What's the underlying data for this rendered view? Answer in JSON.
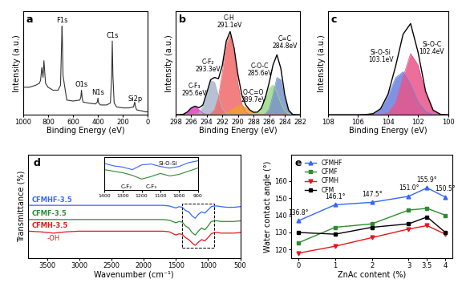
{
  "chart_data": [
    {
      "type": "line",
      "title": "a",
      "x_label": "Binding Energy (eV)",
      "y_label": "Intensity (a.u.)",
      "xlim": [
        1000,
        0
      ],
      "xticks": [
        1000,
        800,
        600,
        400,
        200,
        0
      ],
      "ylim": [
        0,
        105
      ],
      "tick_labels": "x",
      "color": "#333333",
      "x": [
        0,
        20,
        50,
        90,
        100,
        105,
        115,
        150,
        200,
        250,
        270,
        280,
        285,
        290,
        300,
        330,
        380,
        395,
        400,
        405,
        420,
        480,
        520,
        527,
        532,
        537,
        545,
        600,
        650,
        680,
        685,
        688,
        692,
        700,
        720,
        760,
        800,
        820,
        833,
        840,
        850,
        860,
        870,
        900,
        950,
        1000
      ],
      "values": [
        3,
        3,
        4,
        5,
        9,
        13,
        8,
        7,
        7,
        8,
        12,
        40,
        75,
        40,
        12,
        10,
        10,
        12,
        17,
        13,
        11,
        12,
        13,
        18,
        25,
        18,
        15,
        14,
        15,
        40,
        75,
        90,
        70,
        30,
        25,
        25,
        28,
        32,
        55,
        38,
        48,
        35,
        32,
        30,
        28,
        28
      ],
      "annotations": [
        {
          "text": "F1s",
          "x": 688
        },
        {
          "text": "O1s",
          "x": 532
        },
        {
          "text": "N1s",
          "x": 400
        },
        {
          "text": "C1s",
          "x": 285
        },
        {
          "text": "Si2p",
          "x": 102
        }
      ]
    },
    {
      "type": "line",
      "title": "b",
      "x_label": "Binding Energy (eV)",
      "y_label": "Intensity (a.u.)",
      "xlim": [
        298,
        282
      ],
      "xticks": [
        298,
        296,
        294,
        292,
        290,
        288,
        286,
        284,
        282
      ],
      "ylim": [
        0,
        110
      ],
      "tick_labels": "x",
      "x": [
        282.0,
        282.5,
        283.0,
        283.5,
        284.0,
        284.5,
        285.0,
        285.5,
        286.0,
        286.5,
        287.0,
        287.5,
        288.0,
        288.5,
        289.0,
        289.5,
        290.0,
        290.5,
        291.0,
        291.5,
        292.0,
        292.5,
        293.0,
        293.5,
        294.0,
        294.5,
        295.0,
        295.5,
        296.0,
        296.5,
        297.0,
        297.5,
        298.0
      ],
      "series": [
        {
          "name": "C-F₃",
          "label": "295.6eV",
          "type": "area",
          "color": "#e040c0",
          "values": [
            0,
            0,
            0,
            0,
            0,
            0,
            0,
            0,
            0,
            0,
            0,
            0,
            0,
            0,
            0,
            0,
            0,
            0,
            0,
            0,
            0,
            0,
            0,
            0,
            0.3,
            1.7,
            5.5,
            8.9,
            7.2,
            2.9,
            0.6,
            0,
            0
          ]
        },
        {
          "name": "C-F₂",
          "label": "293.3eV",
          "type": "area",
          "color": "#a9b8cc",
          "values": [
            0,
            0,
            0,
            0,
            0,
            0,
            0,
            0,
            0,
            0,
            0,
            0,
            0,
            0,
            0,
            0,
            0,
            0,
            0,
            1.4,
            6.8,
            19.8,
            34.7,
            36.5,
            23.0,
            8.7,
            2.0,
            0.3,
            0,
            0,
            0,
            0,
            0
          ]
        },
        {
          "name": "C-H",
          "label": "291.1eV",
          "type": "area",
          "color": "#f06a6a",
          "values": [
            0,
            0,
            0,
            0,
            0,
            0,
            0,
            0,
            0,
            0,
            0,
            0,
            0,
            0.4,
            2.7,
            11.5,
            33.1,
            64.2,
            84.3,
            75.0,
            45.1,
            18.4,
            5.1,
            0.9,
            0,
            0,
            0,
            0,
            0,
            0,
            0,
            0,
            0
          ]
        },
        {
          "name": "O-C=O",
          "label": "289.7eV",
          "type": "area",
          "color": "#f0a030",
          "values": [
            0,
            0,
            0,
            0,
            0,
            0,
            0,
            0,
            0,
            0,
            0,
            0.9,
            2.4,
            4.9,
            7.8,
            9.8,
            9.6,
            7.3,
            4.3,
            2.0,
            0.7,
            0.2,
            0,
            0,
            0,
            0,
            0,
            0,
            0,
            0,
            0,
            0,
            0
          ]
        },
        {
          "name": "C-O-C",
          "label": "285.6eV",
          "type": "area",
          "color": "#9ad98a",
          "values": [
            0,
            0,
            0,
            1.0,
            4.3,
            12.4,
            24.2,
            31.7,
            28.2,
            17.0,
            6.9,
            1.9,
            0.3,
            0,
            0,
            0,
            0,
            0,
            0,
            0,
            0,
            0,
            0,
            0,
            0,
            0,
            0,
            0,
            0,
            0,
            0,
            0,
            0
          ]
        },
        {
          "name": "C=C",
          "label": "284.8eV",
          "type": "area",
          "color": "#7b93c9",
          "values": [
            0,
            0,
            0.5,
            4.0,
            17.3,
            37.1,
            39.7,
            21.3,
            5.7,
            0.8,
            0,
            0,
            0,
            0,
            0,
            0,
            0,
            0,
            0,
            0,
            0,
            0,
            0,
            0,
            0,
            0,
            0,
            0,
            0,
            0,
            0,
            0,
            0
          ]
        },
        {
          "type": "line",
          "color": "#000000",
          "values": [
            0,
            0,
            0.5,
            5.0,
            21.6,
            49.5,
            63.9,
            53.0,
            33.9,
            17.8,
            6.9,
            2.8,
            2.7,
            5.3,
            10.5,
            21.3,
            42.7,
            71.5,
            88.6,
            78.4,
            52.6,
            38.4,
            39.8,
            37.4,
            23.3,
            10.4,
            7.5,
            9.2,
            7.2,
            2.9,
            0.6,
            0,
            0
          ]
        }
      ]
    },
    {
      "type": "line",
      "title": "c",
      "x_label": "Binding Energy (eV)",
      "y_label": "Intensity (a.u.)",
      "xlim": [
        108,
        100
      ],
      "xticks": [
        108,
        106,
        104,
        102,
        100
      ],
      "ylim": [
        0,
        100
      ],
      "tick_labels": "x",
      "x": [
        100.0,
        100.5,
        101.0,
        101.5,
        102.0,
        102.5,
        103.0,
        103.5,
        104.0,
        104.5,
        105.0,
        105.5,
        106.0,
        106.5,
        107.0,
        107.5,
        108.0
      ],
      "series": [
        {
          "name": "Si-O-Si",
          "label": "103.1eV",
          "type": "area",
          "color": "#6a7fe0",
          "values": [
            0,
            0,
            0.5,
            3.1,
            12.2,
            29.1,
            41.6,
            35.7,
            18.4,
            5.7,
            1.1,
            0.2,
            0,
            0,
            0,
            0,
            0
          ]
        },
        {
          "name": "Si-O-C",
          "label": "102.4eV",
          "type": "area",
          "color": "#e8558a",
          "values": [
            0,
            0.4,
            4.0,
            19.5,
            48.1,
            59.2,
            36.4,
            11.2,
            1.7,
            0.1,
            0,
            0,
            0,
            0,
            0,
            0,
            0
          ]
        },
        {
          "type": "line",
          "color": "#000000",
          "values": [
            0,
            0.4,
            4.5,
            22.6,
            60.3,
            88.3,
            78.0,
            46.9,
            20.1,
            5.8,
            1.1,
            0.2,
            0,
            0,
            0,
            0,
            0
          ]
        }
      ]
    },
    {
      "type": "line",
      "title": "d",
      "x_label": "Wavenumber (cm⁻¹)",
      "y_label": "Transmittance (%)",
      "xlim": [
        3800,
        500
      ],
      "xticks": [
        3500,
        3000,
        2500,
        2000,
        1500,
        1000,
        500
      ],
      "ylim": [
        0,
        160
      ],
      "tick_labels": "x",
      "x": [
        3800,
        3600,
        3400,
        3200,
        3000,
        2500,
        2000,
        1700,
        1600,
        1500,
        1450,
        1400,
        1350,
        1300,
        1250,
        1200,
        1150,
        1100,
        1050,
        1000,
        950,
        900,
        850,
        800,
        700,
        600,
        500
      ],
      "series": [
        {
          "name": "CFMHF-3.5",
          "color": "#3366ff",
          "values": [
            82,
            82,
            82,
            82,
            82,
            82,
            82,
            82,
            81,
            78,
            80,
            79,
            74,
            72,
            66,
            62,
            68,
            72,
            70,
            75,
            80,
            81,
            81,
            80,
            79,
            79,
            80
          ]
        },
        {
          "name": "CFMF-3.5",
          "color": "#2e8b2e",
          "values": [
            60,
            60,
            60,
            60,
            60,
            60,
            60,
            60,
            59,
            55,
            57,
            56,
            50,
            47,
            40,
            36,
            42,
            47,
            44,
            50,
            57,
            58,
            58,
            57,
            57,
            57,
            58
          ]
        },
        {
          "name": "CFMH-3.5",
          "color": "#e8161b",
          "values": [
            42,
            41,
            39,
            41,
            42,
            42,
            42,
            42,
            41,
            36,
            38,
            37,
            32,
            29,
            24,
            20,
            25,
            29,
            27,
            32,
            38,
            40,
            40,
            39,
            39,
            39,
            40
          ]
        }
      ],
      "annotations": [
        {
          "text": "-OH",
          "x": 3400,
          "color": "#e8161b"
        }
      ]
    },
    {
      "type": "line",
      "xlim": [
        1400,
        900
      ],
      "xticks": [
        1400,
        1300,
        1200,
        1100,
        1000,
        900
      ],
      "ylim": [
        -25,
        80
      ],
      "tick_labels": "x",
      "x": [
        1400,
        1350,
        1300,
        1250,
        1200,
        1150,
        1100,
        1050,
        1000,
        950,
        900
      ],
      "series": [
        {
          "color": "#3366ff",
          "values": [
            60,
            52,
            48,
            40,
            55,
            58,
            50,
            45,
            50,
            62,
            68
          ]
        },
        {
          "color": "#2e8b2e",
          "values": [
            40,
            35,
            30,
            22,
            10,
            18,
            28,
            20,
            25,
            35,
            45
          ]
        }
      ],
      "annotations": [
        {
          "text": "C-F₂",
          "x": 1280
        },
        {
          "text": "C-F₃",
          "x": 1150
        },
        {
          "text": "Si-O-Si",
          "x": 1060
        }
      ]
    },
    {
      "type": "line",
      "title": "e",
      "x_label": "ZnAc content (%)",
      "y_label": "Water contact angle (°)",
      "xlim": [
        -0.2,
        4.2
      ],
      "xticks": [
        0,
        1,
        2,
        3,
        3.5,
        4
      ],
      "ylim": [
        115,
        175
      ],
      "yticks": [
        120,
        130,
        140,
        150,
        160
      ],
      "legend": "upper left",
      "data_labels": true,
      "x": [
        0,
        1,
        2,
        3,
        3.5,
        4
      ],
      "series": [
        {
          "name": "CFMHF",
          "color": "#3366ff",
          "marker": "triangle_up",
          "line_style": "solid",
          "values": [
            136.8,
            146.1,
            147.5,
            151.0,
            155.9,
            150.5
          ],
          "value_labels": [
            "136.8°",
            "146.1°",
            "147.5°",
            "151.0°",
            "155.9°",
            "150.5°"
          ]
        },
        {
          "name": "CFMF",
          "color": "#2e8b2e",
          "marker": "square",
          "line_style": "solid",
          "values": [
            124,
            133,
            135,
            143,
            144,
            140
          ]
        },
        {
          "name": "CFMH",
          "color": "#e8161b",
          "marker": "triangle_down",
          "line_style": "solid",
          "values": [
            118,
            122,
            127,
            132,
            134,
            129
          ]
        },
        {
          "name": "CFM",
          "color": "#000000",
          "marker": "square",
          "line_style": "solid",
          "values": [
            130,
            129,
            133,
            135,
            139,
            130
          ]
        }
      ]
    }
  ]
}
